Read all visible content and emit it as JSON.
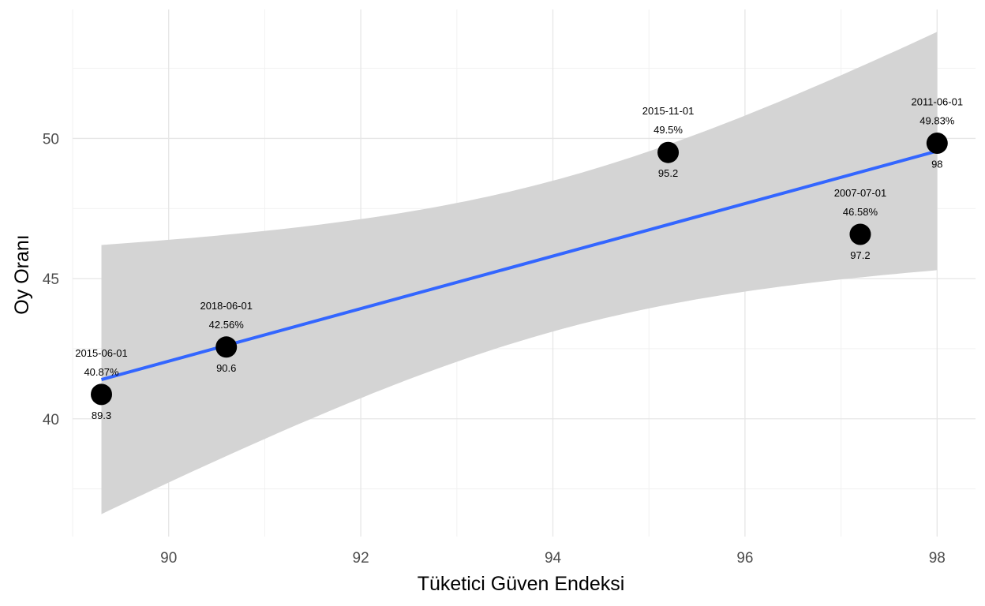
{
  "chart_data": {
    "type": "scatter",
    "title": "",
    "xlabel": "Tüketici Güven Endeksi",
    "ylabel": "Oy Oranı",
    "xlim": [
      89.0,
      98.4
    ],
    "ylim": [
      35.8,
      54.6
    ],
    "x_ticks": [
      90,
      92,
      94,
      96,
      98
    ],
    "y_ticks": [
      40,
      45,
      50
    ],
    "grid": true,
    "legend": "none",
    "points": [
      {
        "date": "2015-06-01",
        "x": 89.3,
        "y": 40.87,
        "y_label": "40.87%",
        "x_label": "89.3"
      },
      {
        "date": "2018-06-01",
        "x": 90.6,
        "y": 42.56,
        "y_label": "42.56%",
        "x_label": "90.6"
      },
      {
        "date": "2015-11-01",
        "x": 95.2,
        "y": 49.5,
        "y_label": "49.5%",
        "x_label": "95.2"
      },
      {
        "date": "2007-07-01",
        "x": 97.2,
        "y": 46.58,
        "y_label": "46.58%",
        "x_label": "97.2"
      },
      {
        "date": "2011-06-01",
        "x": 98.0,
        "y": 49.83,
        "y_label": "49.83%",
        "x_label": "98"
      }
    ],
    "trend_line": {
      "method": "linear",
      "x": [
        89.3,
        98.0
      ],
      "y": [
        41.4,
        49.55
      ],
      "ci_lower": [
        36.6,
        45.3
      ],
      "ci_upper": [
        46.2,
        53.8
      ]
    },
    "colors": {
      "point": "#000000",
      "line": "#3366ff",
      "ribbon": "#d4d4d4"
    }
  }
}
